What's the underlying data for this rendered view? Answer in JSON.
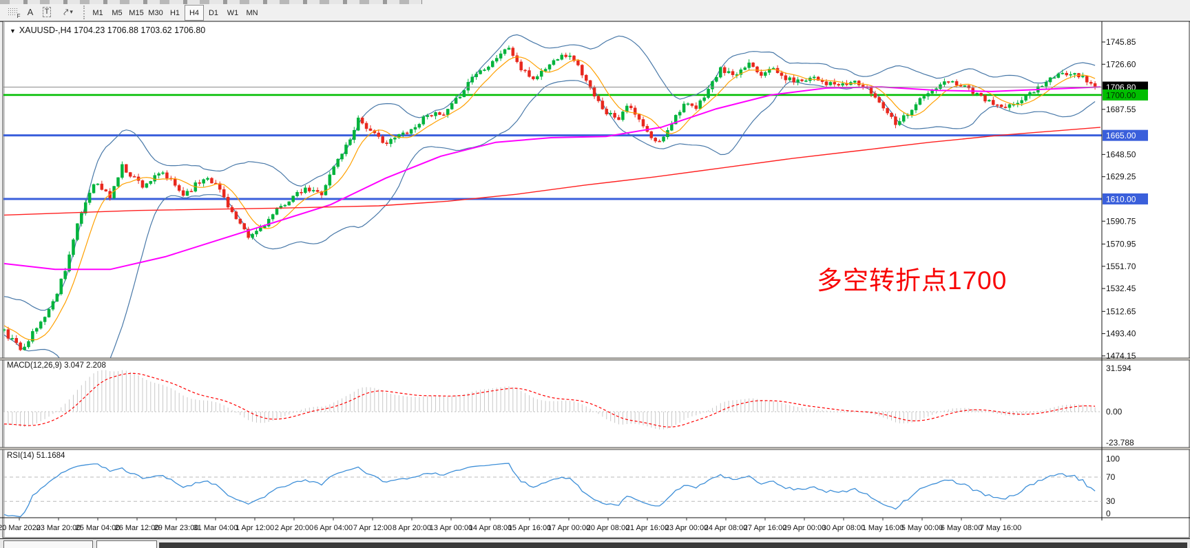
{
  "toolbar": {
    "icons": [
      {
        "name": "fibonacci-grid-icon",
        "label": "F"
      },
      {
        "name": "text-icon",
        "label": "A"
      },
      {
        "name": "text-label-icon",
        "label": "T"
      },
      {
        "name": "arrows-icon",
        "label": "⤤"
      },
      {
        "name": "dropdown-caret-icon",
        "label": "▾"
      }
    ],
    "timeframes": [
      "M1",
      "M5",
      "M15",
      "M30",
      "H1",
      "H4",
      "D1",
      "W1",
      "MN"
    ],
    "active_timeframe": "H4"
  },
  "indicators": {
    "macd": {
      "label": "MACD(12,26,9) 3.047 2.208",
      "name": "MACD",
      "params": "12,26,9",
      "values": [
        "3.047",
        "2.208"
      ],
      "y_ticks": [
        {
          "v": 31.594,
          "t": "31.594"
        },
        {
          "v": 0,
          "t": "0.00"
        },
        {
          "v": -23.788,
          "t": "-23.788"
        }
      ]
    },
    "rsi": {
      "label": "RSI(14) 51.1684",
      "name": "RSI",
      "period": "14",
      "value": "51.1684",
      "y_ticks": [
        {
          "v": 100,
          "t": "100"
        },
        {
          "v": 70,
          "t": "70"
        },
        {
          "v": 30,
          "t": "30"
        },
        {
          "v": 0,
          "t": "0"
        }
      ],
      "level_lines": [
        70,
        30
      ]
    }
  },
  "chart_data": {
    "type": "candlestick",
    "symbol": "XAUUSD-",
    "period": "H4",
    "window_title": "XAUUSD-,H4  1704.23 1706.88 1703.62 1706.80",
    "ohlc": {
      "open": "1704.23",
      "high": "1706.88",
      "low": "1703.62",
      "close": "1706.80"
    },
    "annotation": {
      "text": "多空转折点1700",
      "color": "#F80506"
    },
    "y_axis_ticks": [
      "1745.85",
      "1726.60",
      "1687.55",
      "1648.50",
      "1629.25",
      "1590.75",
      "1570.95",
      "1551.70",
      "1532.45",
      "1512.65",
      "1493.40",
      "1474.15"
    ],
    "x_axis_labels": [
      "20 Mar 2020",
      "23 Mar 20:00",
      "25 Mar 04:00",
      "26 Mar 12:00",
      "29 Mar 23:00",
      "31 Mar 04:00",
      "1 Apr 12:00",
      "2 Apr 20:00",
      "6 Apr 04:00",
      "7 Apr 12:00",
      "8 Apr 20:00",
      "13 Apr 00:00",
      "14 Apr 08:00",
      "15 Apr 16:00",
      "17 Apr 00:00",
      "20 Apr 08:00",
      "21 Apr 16:00",
      "23 Apr 00:00",
      "24 Apr 08:00",
      "27 Apr 16:00",
      "29 Apr 00:00",
      "30 Apr 08:00",
      "1 May 16:00",
      "5 May 00:00",
      "6 May 08:00",
      "7 May 16:00"
    ],
    "levels": [
      {
        "price": 1706.8,
        "label": "1706.80",
        "kind": "current-price",
        "box_bg": "#000000",
        "box_fg": "#ffffff",
        "line": "#8a8a8a",
        "width": 1
      },
      {
        "price": 1700.0,
        "label": "1700.00",
        "kind": "horizontal-line",
        "box_bg": "#00BE00",
        "box_fg": "#032d03",
        "line": "#00BE00",
        "width": 2.6
      },
      {
        "price": 1665.0,
        "label": "1665.00",
        "kind": "horizontal-line",
        "box_bg": "#3A5FDB",
        "box_fg": "#ffffff",
        "line": "#3A5FDB",
        "width": 3
      },
      {
        "price": 1610.0,
        "label": "1610.00",
        "kind": "horizontal-line",
        "box_bg": "#3A5FDB",
        "box_fg": "#ffffff",
        "line": "#3A5FDB",
        "width": 3
      }
    ],
    "candle_count": 269,
    "close_waypoints": [
      [
        0,
        1495
      ],
      [
        4,
        1480
      ],
      [
        8,
        1498
      ],
      [
        12,
        1520
      ],
      [
        15,
        1550
      ],
      [
        19,
        1598
      ],
      [
        22,
        1625
      ],
      [
        26,
        1612
      ],
      [
        29,
        1638
      ],
      [
        34,
        1622
      ],
      [
        39,
        1632
      ],
      [
        44,
        1614
      ],
      [
        50,
        1630
      ],
      [
        53,
        1618
      ],
      [
        57,
        1592
      ],
      [
        60,
        1576
      ],
      [
        64,
        1588
      ],
      [
        67,
        1600
      ],
      [
        71,
        1612
      ],
      [
        74,
        1618
      ],
      [
        78,
        1615
      ],
      [
        81,
        1638
      ],
      [
        85,
        1662
      ],
      [
        87,
        1680
      ],
      [
        90,
        1668
      ],
      [
        94,
        1658
      ],
      [
        97,
        1665
      ],
      [
        101,
        1672
      ],
      [
        104,
        1684
      ],
      [
        108,
        1682
      ],
      [
        112,
        1700
      ],
      [
        115,
        1716
      ],
      [
        119,
        1726
      ],
      [
        122,
        1736
      ],
      [
        124,
        1741
      ],
      [
        127,
        1722
      ],
      [
        130,
        1714
      ],
      [
        134,
        1726
      ],
      [
        137,
        1736
      ],
      [
        140,
        1731
      ],
      [
        143,
        1712
      ],
      [
        145,
        1698
      ],
      [
        148,
        1685
      ],
      [
        151,
        1680
      ],
      [
        153,
        1692
      ],
      [
        156,
        1678
      ],
      [
        159,
        1662
      ],
      [
        161,
        1659
      ],
      [
        165,
        1682
      ],
      [
        167,
        1692
      ],
      [
        170,
        1688
      ],
      [
        173,
        1705
      ],
      [
        176,
        1722
      ],
      [
        180,
        1716
      ],
      [
        183,
        1728
      ],
      [
        186,
        1718
      ],
      [
        188,
        1724
      ],
      [
        192,
        1714
      ],
      [
        195,
        1712
      ],
      [
        199,
        1716
      ],
      [
        202,
        1710
      ],
      [
        206,
        1708
      ],
      [
        209,
        1712
      ],
      [
        213,
        1702
      ],
      [
        216,
        1690
      ],
      [
        219,
        1676
      ],
      [
        222,
        1684
      ],
      [
        225,
        1696
      ],
      [
        229,
        1706
      ],
      [
        232,
        1712
      ],
      [
        236,
        1708
      ],
      [
        239,
        1700
      ],
      [
        243,
        1692
      ],
      [
        246,
        1688
      ],
      [
        250,
        1696
      ],
      [
        253,
        1704
      ],
      [
        257,
        1714
      ],
      [
        260,
        1718
      ],
      [
        263,
        1720
      ],
      [
        266,
        1712
      ],
      [
        268,
        1706.8
      ]
    ],
    "magenta_ma_points": [
      [
        6,
        1554
      ],
      [
        80,
        1549
      ],
      [
        160,
        1549
      ],
      [
        240,
        1560
      ],
      [
        320,
        1575
      ],
      [
        400,
        1590
      ],
      [
        480,
        1605
      ],
      [
        560,
        1628
      ],
      [
        640,
        1647
      ],
      [
        720,
        1659
      ],
      [
        800,
        1663
      ],
      [
        880,
        1664
      ],
      [
        960,
        1672
      ],
      [
        1040,
        1688
      ],
      [
        1120,
        1700
      ],
      [
        1200,
        1706
      ],
      [
        1280,
        1707
      ],
      [
        1360,
        1704
      ],
      [
        1440,
        1703
      ],
      [
        1520,
        1705
      ],
      [
        1598,
        1707
      ]
    ],
    "red_ma_points": [
      [
        6,
        1596
      ],
      [
        200,
        1600
      ],
      [
        400,
        1602
      ],
      [
        550,
        1604
      ],
      [
        650,
        1608
      ],
      [
        750,
        1614
      ],
      [
        850,
        1622
      ],
      [
        950,
        1629
      ],
      [
        1050,
        1637
      ],
      [
        1150,
        1645
      ],
      [
        1250,
        1652
      ],
      [
        1350,
        1659
      ],
      [
        1450,
        1665
      ],
      [
        1598,
        1672
      ]
    ],
    "colors": {
      "candle_up": "#00B33C",
      "candle_down": "#E8281E",
      "bollinger": "#4878A8",
      "sma_fast": "#FFA000",
      "ma_magenta": "#FF00FF",
      "ma_long": "#FF2020",
      "macd_hist": "#C8C8C8",
      "macd_signal": "#FF0000",
      "rsi_line": "#3E8FD8"
    }
  }
}
